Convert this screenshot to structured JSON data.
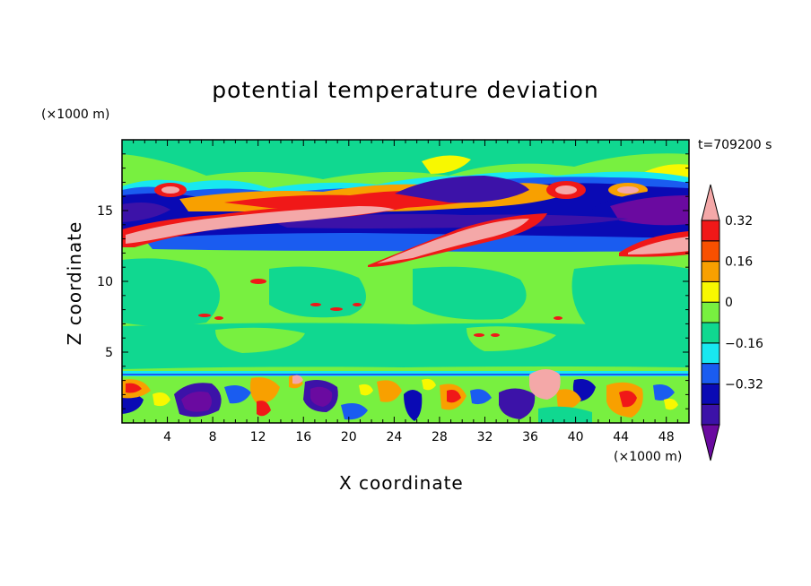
{
  "chart_data": {
    "type": "heatmap",
    "title": "potential temperature deviation",
    "xlabel": "X coordinate",
    "ylabel": "Z coordinate",
    "x_units": "(×1000 m)",
    "y_units": "(×1000 m)",
    "time_label": "t=709200 s",
    "xlim": [
      0,
      50
    ],
    "ylim": [
      0,
      20
    ],
    "x_ticks": [
      4,
      8,
      12,
      16,
      20,
      24,
      28,
      32,
      36,
      40,
      44,
      48
    ],
    "y_ticks": [
      5,
      10,
      15
    ],
    "colorbar": {
      "levels": [
        -0.48,
        -0.4,
        -0.32,
        -0.24,
        -0.16,
        -0.08,
        0,
        0.08,
        0.16,
        0.24,
        0.32,
        0.4
      ],
      "tick_values": [
        -0.32,
        -0.16,
        0,
        0.16,
        0.32
      ],
      "tick_labels": [
        "−0.32",
        "−0.16",
        "0",
        "0.16",
        "0.32"
      ],
      "colors": [
        "#6a0aa0",
        "#3c12a8",
        "#0a0ab4",
        "#1a5cf0",
        "#18e8f0",
        "#10d890",
        "#78f040",
        "#f8f800",
        "#f8a000",
        "#f85000",
        "#f01818",
        "#f4a8a8"
      ],
      "extend": "both"
    },
    "background_color": "#78f040",
    "features": [
      {
        "name": "upper-neutral-band",
        "x": [
          0,
          50
        ],
        "z": [
          17.2,
          20
        ],
        "value": 0.02
      },
      {
        "name": "mid-neutral-band",
        "x": [
          0,
          50
        ],
        "z": [
          3.8,
          12.4
        ],
        "value": 0.02
      },
      {
        "name": "cold-layer",
        "x": [
          2,
          50
        ],
        "z": [
          12.3,
          13.5
        ],
        "value": -0.2
      },
      {
        "name": "warm-ridge",
        "x": [
          0,
          22
        ],
        "z": [
          13.4,
          15.3
        ],
        "value": 0.45
      },
      {
        "name": "warm-ridge-east",
        "x": [
          22,
          36
        ],
        "z": [
          11.3,
          14.6
        ],
        "value": 0.45
      },
      {
        "name": "cold-pool-northeast",
        "x": [
          42,
          50
        ],
        "z": [
          14.2,
          16.4
        ],
        "value": -0.45
      },
      {
        "name": "boundary-layer-turbulence",
        "x": [
          0,
          50
        ],
        "z": [
          0,
          3.6
        ],
        "value": 0
      }
    ]
  }
}
